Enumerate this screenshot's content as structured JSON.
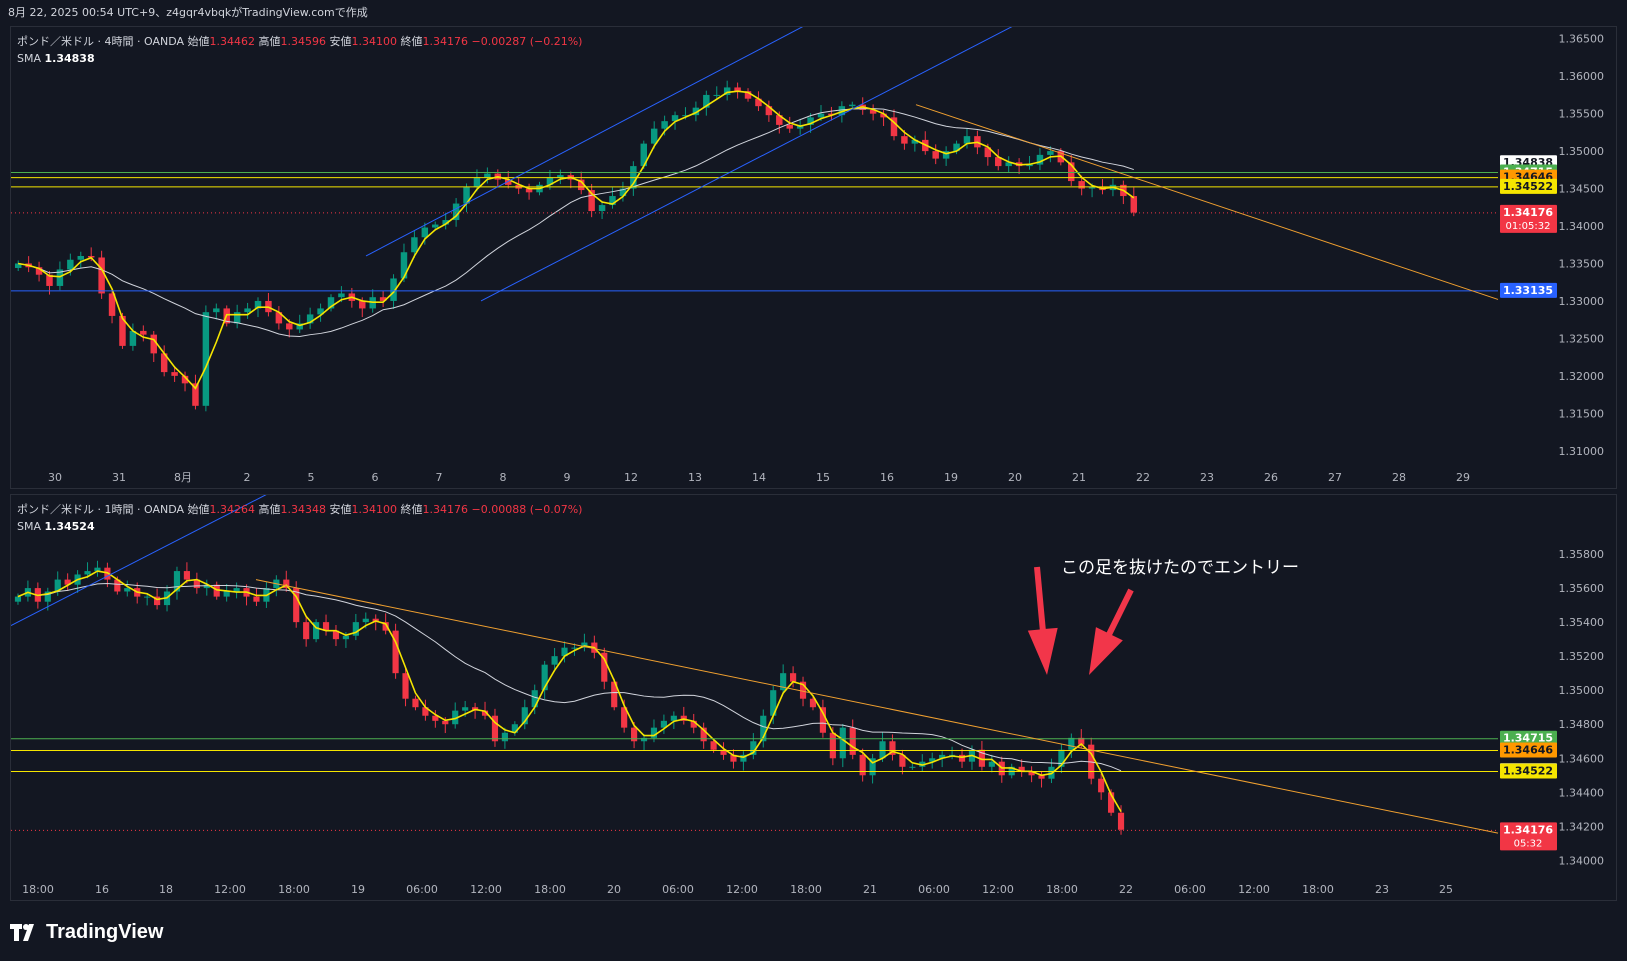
{
  "header": {
    "text": "8月 22, 2025 00:54 UTC+9、z4gqr4vbqkがTradingView.comで作成"
  },
  "footer": {
    "brand": "TradingView"
  },
  "colors": {
    "bg": "#131722",
    "up": "#089981",
    "down": "#f23645",
    "sma": "#d1d4dc",
    "fast": "#f5e500",
    "trend": "#2962ff",
    "orange": "#f0a030",
    "green_level": "#4caf50",
    "yellow_level": "#f5e500"
  },
  "panes": [
    {
      "id": "pane1",
      "legend": {
        "symbol": "ポンド／米ドル · 4時間 · OANDA",
        "o_label": "始値",
        "o": "1.34462",
        "h_label": "高値",
        "h": "1.34596",
        "l_label": "安値",
        "l": "1.34100",
        "c_label": "終値",
        "c": "1.34176",
        "chg": "−0.00287 (−0.21%)",
        "sma_label": "SMA",
        "sma": "1.34838"
      },
      "chart_data": {
        "type": "candlestick",
        "ylim": [
          1.3085,
          1.3655
        ],
        "yticks": [
          "1.31000",
          "1.31500",
          "1.32000",
          "1.32500",
          "1.33000",
          "1.33500",
          "1.34000",
          "1.34500",
          "1.35000",
          "1.35500",
          "1.36000",
          "1.36500"
        ],
        "xticks": [
          "30",
          "31",
          "8月",
          "2",
          "5",
          "6",
          "7",
          "8",
          "9",
          "12",
          "13",
          "14",
          "15",
          "16",
          "19",
          "20",
          "21",
          "22",
          "23",
          "26",
          "27",
          "28",
          "29"
        ],
        "close": [
          1.335,
          1.3345,
          1.3335,
          1.332,
          1.3342,
          1.3355,
          1.336,
          1.3358,
          1.331,
          1.328,
          1.324,
          1.326,
          1.3255,
          1.323,
          1.3205,
          1.32,
          1.319,
          1.316,
          1.3285,
          1.329,
          1.327,
          1.3285,
          1.329,
          1.33,
          1.3285,
          1.327,
          1.3262,
          1.327,
          1.3282,
          1.329,
          1.3305,
          1.331,
          1.33,
          1.329,
          1.3305,
          1.33,
          1.333,
          1.3365,
          1.3385,
          1.3398,
          1.3402,
          1.3408,
          1.343,
          1.3452,
          1.3465,
          1.347,
          1.3462,
          1.3455,
          1.345,
          1.3445,
          1.3455,
          1.3465,
          1.3468,
          1.3462,
          1.3448,
          1.342,
          1.3428,
          1.344,
          1.345,
          1.348,
          1.351,
          1.353,
          1.354,
          1.3548,
          1.3548,
          1.3558,
          1.3575,
          1.3575,
          1.3585,
          1.358,
          1.357,
          1.356,
          1.3548,
          1.3535,
          1.353,
          1.3535,
          1.3545,
          1.355,
          1.3548,
          1.356,
          1.3562,
          1.3555,
          1.355,
          1.3545,
          1.352,
          1.351,
          1.3515,
          1.35,
          1.349,
          1.35,
          1.351,
          1.352,
          1.3505,
          1.3492,
          1.348,
          1.3485,
          1.348,
          1.3482,
          1.3495,
          1.35,
          1.3485,
          1.346,
          1.345,
          1.3452,
          1.3448,
          1.3455,
          1.344,
          1.3418
        ],
        "hlines": [
          {
            "price": 1.34715,
            "label": "1.34715",
            "color": "#4caf50",
            "text": "#ffffff"
          },
          {
            "price": 1.34646,
            "label": "1.34646",
            "color": "#f5e500",
            "text": "#131722",
            "box": "#ff9800"
          },
          {
            "price": 1.34522,
            "label": "1.34522",
            "color": "#f5e500",
            "text": "#131722"
          },
          {
            "price": 1.33135,
            "label": "1.33135",
            "color": "#2962ff",
            "text": "#ffffff"
          }
        ],
        "smaTag": {
          "price": 1.34838,
          "label": "1.34838"
        },
        "lastTag": {
          "price": 1.34176,
          "label": "1.34176",
          "sub": "01:05:32"
        }
      }
    },
    {
      "id": "pane2",
      "legend": {
        "symbol": "ポンド／米ドル · 1時間 · OANDA",
        "o_label": "始値",
        "o": "1.34264",
        "h_label": "高値",
        "h": "1.34348",
        "l_label": "安値",
        "l": "1.34100",
        "c_label": "終値",
        "c": "1.34176",
        "chg": "−0.00088 (−0.07%)",
        "sma_label": "SMA",
        "sma": "1.34524"
      },
      "chart_data": {
        "type": "candlestick",
        "ylim": [
          1.3392,
          1.361
        ],
        "yticks": [
          "1.34000",
          "1.34200",
          "1.34400",
          "1.34600",
          "1.34800",
          "1.35000",
          "1.35200",
          "1.35400",
          "1.35600",
          "1.35800"
        ],
        "xticks": [
          "18:00",
          "16",
          "18",
          "12:00",
          "18:00",
          "19",
          "06:00",
          "12:00",
          "18:00",
          "20",
          "06:00",
          "12:00",
          "18:00",
          "21",
          "06:00",
          "12:00",
          "18:00",
          "22",
          "06:00",
          "12:00",
          "18:00",
          "23",
          "25"
        ],
        "close": [
          1.3555,
          1.356,
          1.3552,
          1.3558,
          1.3565,
          1.3562,
          1.3568,
          1.357,
          1.3572,
          1.3565,
          1.3558,
          1.356,
          1.3555,
          1.3555,
          1.355,
          1.3558,
          1.357,
          1.3565,
          1.356,
          1.3562,
          1.3555,
          1.3558,
          1.356,
          1.3555,
          1.3552,
          1.356,
          1.3565,
          1.356,
          1.354,
          1.353,
          1.354,
          1.3535,
          1.353,
          1.3532,
          1.354,
          1.3542,
          1.354,
          1.3535,
          1.351,
          1.3495,
          1.349,
          1.3485,
          1.3482,
          1.348,
          1.3488,
          1.349,
          1.3488,
          1.3485,
          1.347,
          1.3475,
          1.348,
          1.349,
          1.35,
          1.3515,
          1.352,
          1.3525,
          1.3525,
          1.3528,
          1.3522,
          1.3505,
          1.349,
          1.3478,
          1.347,
          1.3472,
          1.3478,
          1.3482,
          1.3485,
          1.3482,
          1.3478,
          1.347,
          1.3465,
          1.3462,
          1.3458,
          1.3462,
          1.347,
          1.3485,
          1.35,
          1.351,
          1.3505,
          1.3495,
          1.349,
          1.3475,
          1.346,
          1.3478,
          1.3462,
          1.345,
          1.346,
          1.347,
          1.3462,
          1.3455,
          1.3455,
          1.3458,
          1.346,
          1.3462,
          1.3462,
          1.3458,
          1.3465,
          1.3455,
          1.3458,
          1.345,
          1.3455,
          1.3452,
          1.345,
          1.3448,
          1.3455,
          1.3465,
          1.3472,
          1.3468,
          1.3448,
          1.344,
          1.3428,
          1.3418
        ],
        "hlines": [
          {
            "price": 1.34715,
            "label": "1.34715",
            "color": "#4caf50",
            "text": "#ffffff"
          },
          {
            "price": 1.34646,
            "label": "1.34646",
            "color": "#f5e500",
            "text": "#131722",
            "box": "#ff9800"
          },
          {
            "price": 1.34522,
            "label": "1.34522",
            "color": "#f5e500",
            "text": "#131722"
          }
        ],
        "smaTag": {
          "price": 1.34524,
          "label": "1.34524"
        },
        "lastTag": {
          "price": 1.34176,
          "label": "1.34176",
          "sub": "05:32"
        }
      },
      "annotation": "この足を抜けたのでエントリー"
    }
  ]
}
